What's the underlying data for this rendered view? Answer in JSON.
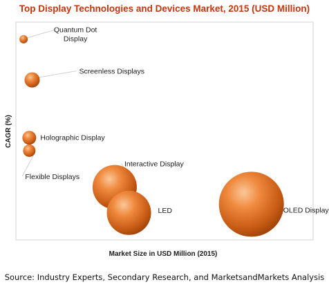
{
  "chart_data": {
    "type": "scatter",
    "title": "Top Display Technologies and Devices Market, 2015 (USD Million)",
    "xlabel": "Market Size in USD Million (2015)",
    "ylabel": "CAGR (%)",
    "xlim": [
      0,
      100
    ],
    "ylim": [
      0,
      100
    ],
    "grid": false,
    "legend": "none",
    "bubble_color": "#e26b1c",
    "points": [
      {
        "name": "Quantum Dot Display",
        "x": 1,
        "y": 93,
        "size": 6
      },
      {
        "name": "Screenless Displays",
        "x": 4,
        "y": 74,
        "size": 11
      },
      {
        "name": "Holographic Display",
        "x": 3,
        "y": 47,
        "size": 10
      },
      {
        "name": "Flexible Displays",
        "x": 3,
        "y": 41,
        "size": 9
      },
      {
        "name": "Interactive Display",
        "x": 33,
        "y": 24,
        "size": 32
      },
      {
        "name": "LED",
        "x": 38,
        "y": 12,
        "size": 32
      },
      {
        "name": "OLED Display",
        "x": 81,
        "y": 16,
        "size": 47
      }
    ]
  },
  "source": "Source: Industry Experts, Secondary Research, and MarketsandMarkets Analysis"
}
